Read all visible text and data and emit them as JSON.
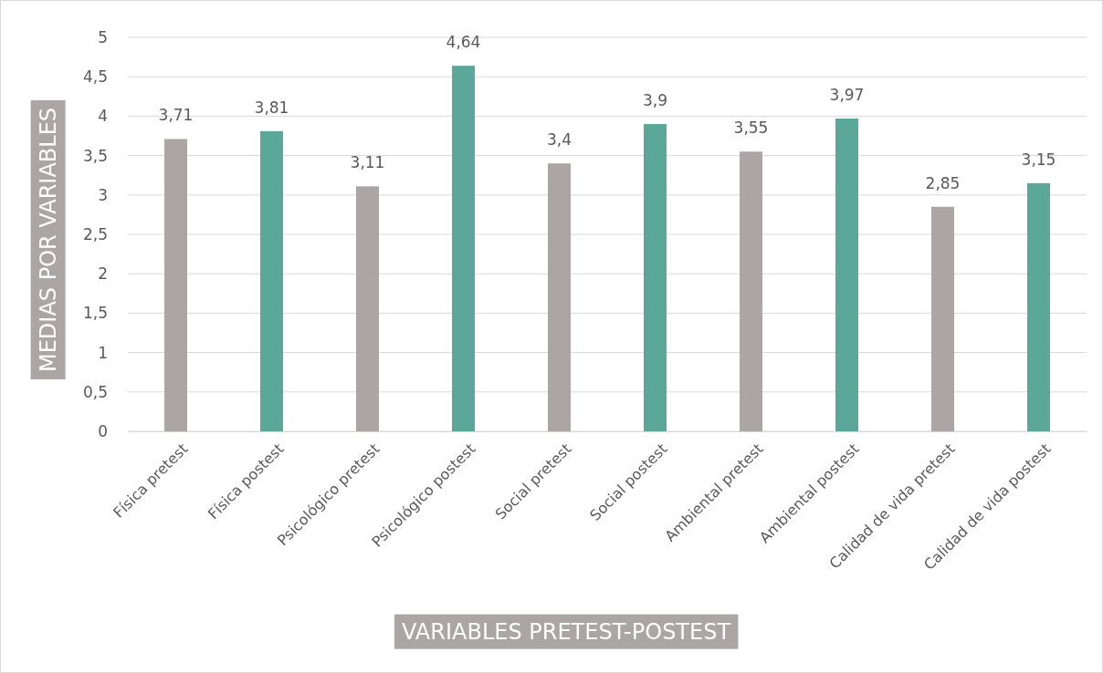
{
  "chart_data": {
    "type": "bar",
    "xlabel": "VARIABLES PRETEST-POSTEST",
    "ylabel": "MEDIAS POR VARIABLES",
    "categories": [
      "Física pretest",
      "Física postest",
      "Psicológico pretest",
      "Psicológico postest",
      "Social pretest",
      "Social postest",
      "Ambiental pretest",
      "Ambiental postest",
      "Calidad de vida pretest",
      "Calidad de vida postest"
    ],
    "values": [
      3.71,
      3.81,
      3.11,
      4.64,
      3.4,
      3.9,
      3.55,
      3.97,
      2.85,
      3.15
    ],
    "value_labels": [
      "3,71",
      "3,81",
      "3,11",
      "4,64",
      "3,4",
      "3,9",
      "3,55",
      "3,97",
      "2,85",
      "3,15"
    ],
    "colors": [
      "#aba6a5",
      "#5ba89b",
      "#aba6a5",
      "#5ba89b",
      "#aba6a5",
      "#5ba89b",
      "#aba6a5",
      "#5ba89b",
      "#aba6a5",
      "#5ba89b"
    ],
    "ylim": [
      0,
      5
    ],
    "yticks": [
      0,
      {
        "value": 0.5,
        "label": "0,5"
      },
      1,
      {
        "value": 1.5,
        "label": "1,5"
      },
      2,
      {
        "value": 2.5,
        "label": "2,5"
      },
      3,
      {
        "value": 3.5,
        "label": "3,5"
      },
      4,
      {
        "value": 4.5,
        "label": "4,5"
      },
      5
    ],
    "grid": "y"
  }
}
